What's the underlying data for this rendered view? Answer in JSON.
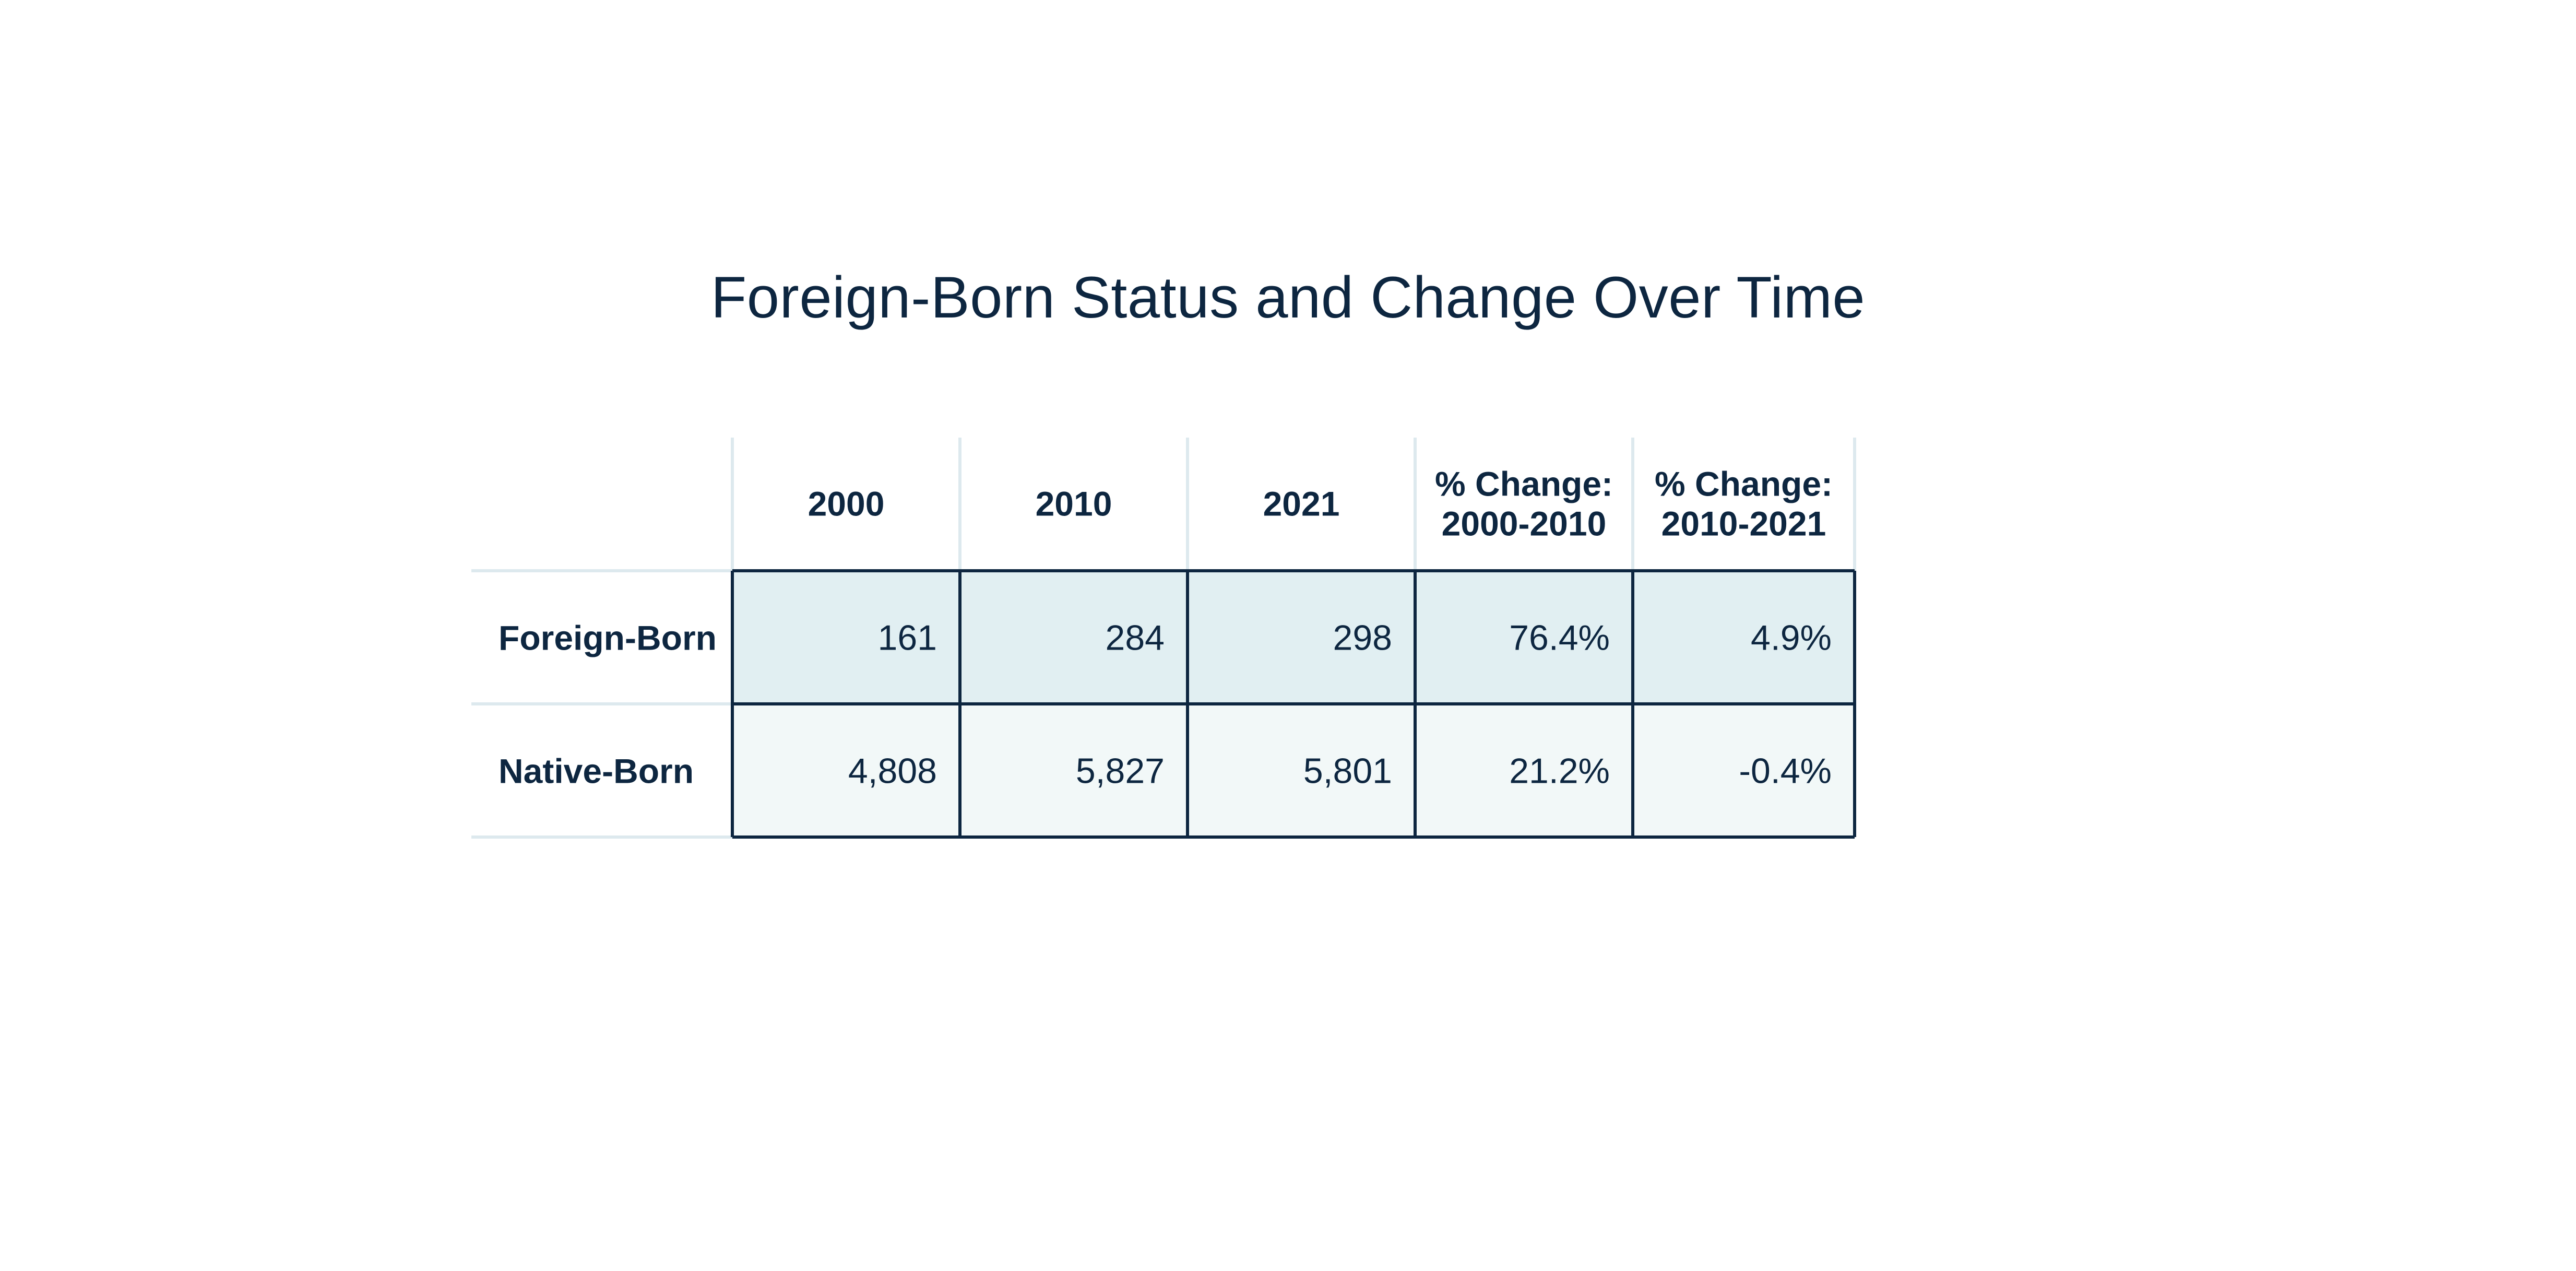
{
  "chart_data": {
    "type": "table",
    "title": "Foreign-Born Status and Change Over Time",
    "columns": [
      "",
      "2000",
      "2010",
      "2021",
      "% Change:\n2000-2010",
      "% Change:\n2010-2021"
    ],
    "column_lines": [
      [
        ""
      ],
      [
        "2000"
      ],
      [
        "2010"
      ],
      [
        "2021"
      ],
      [
        "% Change:",
        "2000-2010"
      ],
      [
        "% Change:",
        "2010-2021"
      ]
    ],
    "rows": [
      {
        "label": "Foreign-Born",
        "values": [
          "161",
          "284",
          "298",
          "76.4%",
          "4.9%"
        ]
      },
      {
        "label": "Native-Born",
        "values": [
          "4,808",
          "5,827",
          "5,801",
          "21.2%",
          "-0.4%"
        ]
      }
    ],
    "colors": {
      "text": "#0d2640",
      "row1_fill": "#e1eff2",
      "row2_fill": "#f2f8f8",
      "border": "#0d2640",
      "light_rule": "#dde9ee"
    }
  }
}
